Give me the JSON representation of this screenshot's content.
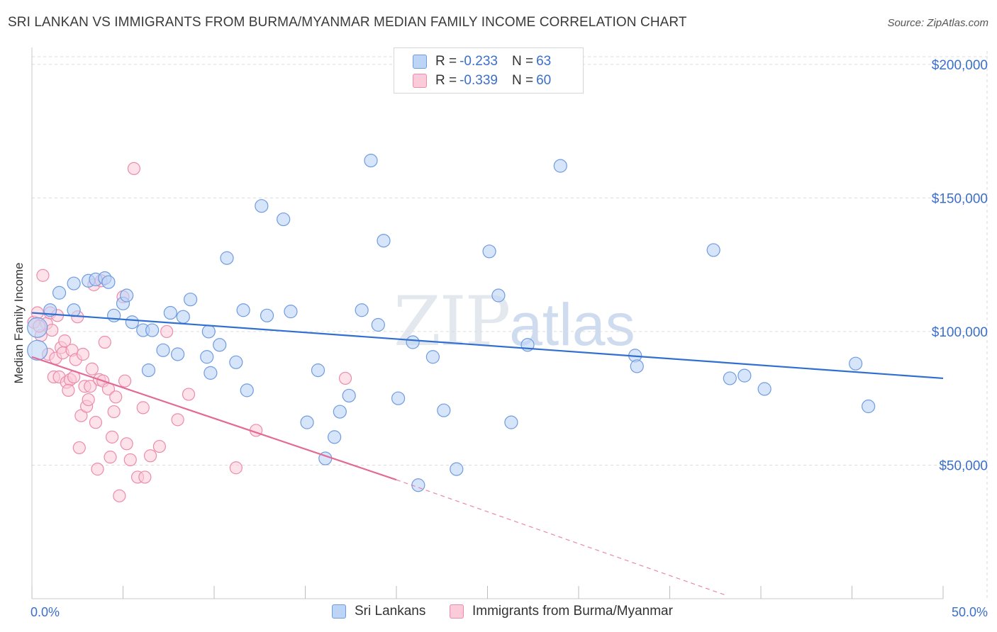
{
  "title": "SRI LANKAN VS IMMIGRANTS FROM BURMA/MYANMAR MEDIAN FAMILY INCOME CORRELATION CHART",
  "source": "Source: ZipAtlas.com",
  "watermark": {
    "zip": "ZIP",
    "atlas": "atlas"
  },
  "legend": {
    "r_label": "R =",
    "n_label": "N =",
    "series": [
      {
        "r": "-0.233",
        "n": "63"
      },
      {
        "r": "-0.339",
        "n": "60"
      }
    ]
  },
  "colors": {
    "blue_fill": "#bcd4f6",
    "blue_stroke": "#6f9be0",
    "blue_line": "#2f6fd0",
    "pink_fill": "#fbcbd9",
    "pink_stroke": "#ec8bab",
    "pink_line": "#e46a96",
    "grid": "#dcdcdc",
    "tick_text": "#3b6fc9"
  },
  "chart_data": {
    "type": "scatter",
    "title": "SRI LANKAN VS IMMIGRANTS FROM BURMA/MYANMAR MEDIAN FAMILY INCOME CORRELATION CHART",
    "xlabel": "",
    "ylabel": "Median Family Income",
    "xlim": [
      0,
      50
    ],
    "ylim": [
      0,
      205000
    ],
    "x_tick_labels": [
      "0.0%",
      "50.0%"
    ],
    "y_ticks": [
      {
        "value": 50000,
        "label": "$50,000"
      },
      {
        "value": 100000,
        "label": "$100,000"
      },
      {
        "value": 150000,
        "label": "$150,000"
      },
      {
        "value": 200000,
        "label": "$200,000"
      }
    ],
    "series": [
      {
        "name": "Sri Lankans",
        "r": -0.233,
        "n": 63,
        "trend": {
          "x0": 0,
          "y0": 107000,
          "x1": 50,
          "y1": 82500
        },
        "points": [
          [
            0.3,
            101500
          ],
          [
            0.3,
            93000
          ],
          [
            1.0,
            108000
          ],
          [
            1.5,
            114500
          ],
          [
            2.3,
            108000
          ],
          [
            2.3,
            118000
          ],
          [
            3.1,
            119000
          ],
          [
            3.5,
            119500
          ],
          [
            4.0,
            120000
          ],
          [
            4.2,
            118500
          ],
          [
            4.5,
            106000
          ],
          [
            5.0,
            110500
          ],
          [
            5.2,
            113500
          ],
          [
            5.5,
            103500
          ],
          [
            6.1,
            100500
          ],
          [
            6.4,
            85500
          ],
          [
            6.6,
            100500
          ],
          [
            7.2,
            93000
          ],
          [
            7.6,
            107000
          ],
          [
            8.0,
            91500
          ],
          [
            8.3,
            105500
          ],
          [
            8.7,
            112000
          ],
          [
            9.6,
            90500
          ],
          [
            9.7,
            100000
          ],
          [
            9.8,
            84500
          ],
          [
            10.3,
            95000
          ],
          [
            10.7,
            127500
          ],
          [
            11.2,
            88500
          ],
          [
            11.6,
            108000
          ],
          [
            11.8,
            78000
          ],
          [
            12.6,
            147000
          ],
          [
            12.9,
            106000
          ],
          [
            13.8,
            142000
          ],
          [
            14.2,
            107500
          ],
          [
            15.1,
            66000
          ],
          [
            15.7,
            85500
          ],
          [
            16.1,
            52500
          ],
          [
            16.6,
            60500
          ],
          [
            16.9,
            70000
          ],
          [
            17.4,
            76000
          ],
          [
            18.1,
            108000
          ],
          [
            18.6,
            164000
          ],
          [
            19.0,
            102500
          ],
          [
            19.3,
            134000
          ],
          [
            20.1,
            75000
          ],
          [
            20.9,
            96000
          ],
          [
            21.2,
            42500
          ],
          [
            22.0,
            90500
          ],
          [
            22.6,
            70500
          ],
          [
            23.3,
            48500
          ],
          [
            25.1,
            130000
          ],
          [
            25.6,
            113500
          ],
          [
            26.3,
            66000
          ],
          [
            27.2,
            95000
          ],
          [
            29.0,
            162000
          ],
          [
            33.1,
            91000
          ],
          [
            33.2,
            87000
          ],
          [
            37.4,
            130500
          ],
          [
            38.3,
            82500
          ],
          [
            39.1,
            83500
          ],
          [
            40.2,
            78500
          ],
          [
            45.2,
            88000
          ],
          [
            45.9,
            72000
          ]
        ]
      },
      {
        "name": "Immigrants from Burma/Myanmar",
        "r": -0.339,
        "n": 60,
        "trend": {
          "x0": 0,
          "y0": 90500,
          "x1": 20,
          "y1": 44500,
          "dash_x1": 38,
          "dash_y1": 1500
        },
        "points": [
          [
            0.1,
            103500
          ],
          [
            0.3,
            107000
          ],
          [
            0.5,
            98500
          ],
          [
            0.6,
            121000
          ],
          [
            0.8,
            103000
          ],
          [
            0.9,
            91500
          ],
          [
            1.0,
            107000
          ],
          [
            1.1,
            100500
          ],
          [
            1.2,
            83000
          ],
          [
            1.3,
            90000
          ],
          [
            1.4,
            106000
          ],
          [
            1.5,
            83000
          ],
          [
            1.6,
            94000
          ],
          [
            1.7,
            92000
          ],
          [
            1.8,
            96500
          ],
          [
            1.9,
            81000
          ],
          [
            2.1,
            82000
          ],
          [
            2.0,
            78000
          ],
          [
            2.2,
            93000
          ],
          [
            2.3,
            83000
          ],
          [
            2.4,
            89500
          ],
          [
            2.5,
            105500
          ],
          [
            2.6,
            56500
          ],
          [
            2.7,
            68500
          ],
          [
            2.8,
            91500
          ],
          [
            2.9,
            79500
          ],
          [
            3.0,
            72000
          ],
          [
            3.1,
            74500
          ],
          [
            3.2,
            79500
          ],
          [
            3.3,
            86000
          ],
          [
            3.4,
            117500
          ],
          [
            3.5,
            66000
          ],
          [
            3.6,
            48500
          ],
          [
            3.7,
            82000
          ],
          [
            3.8,
            119000
          ],
          [
            3.9,
            81500
          ],
          [
            4.0,
            96000
          ],
          [
            4.2,
            78500
          ],
          [
            4.4,
            60500
          ],
          [
            4.5,
            70000
          ],
          [
            4.6,
            75500
          ],
          [
            4.8,
            38500
          ],
          [
            5.0,
            113000
          ],
          [
            5.1,
            81500
          ],
          [
            5.2,
            58000
          ],
          [
            5.4,
            52000
          ],
          [
            5.6,
            161000
          ],
          [
            5.8,
            45500
          ],
          [
            6.1,
            71500
          ],
          [
            6.2,
            45500
          ],
          [
            6.5,
            53500
          ],
          [
            7.0,
            57000
          ],
          [
            7.4,
            100000
          ],
          [
            8.0,
            67000
          ],
          [
            8.6,
            76500
          ],
          [
            11.2,
            49000
          ],
          [
            12.3,
            63000
          ],
          [
            17.2,
            82500
          ],
          [
            0.4,
            102000
          ],
          [
            4.3,
            53000
          ]
        ]
      }
    ],
    "legend_placement": "top-center"
  },
  "bottom_legend": [
    "Sri Lankans",
    "Immigrants from Burma/Myanmar"
  ]
}
